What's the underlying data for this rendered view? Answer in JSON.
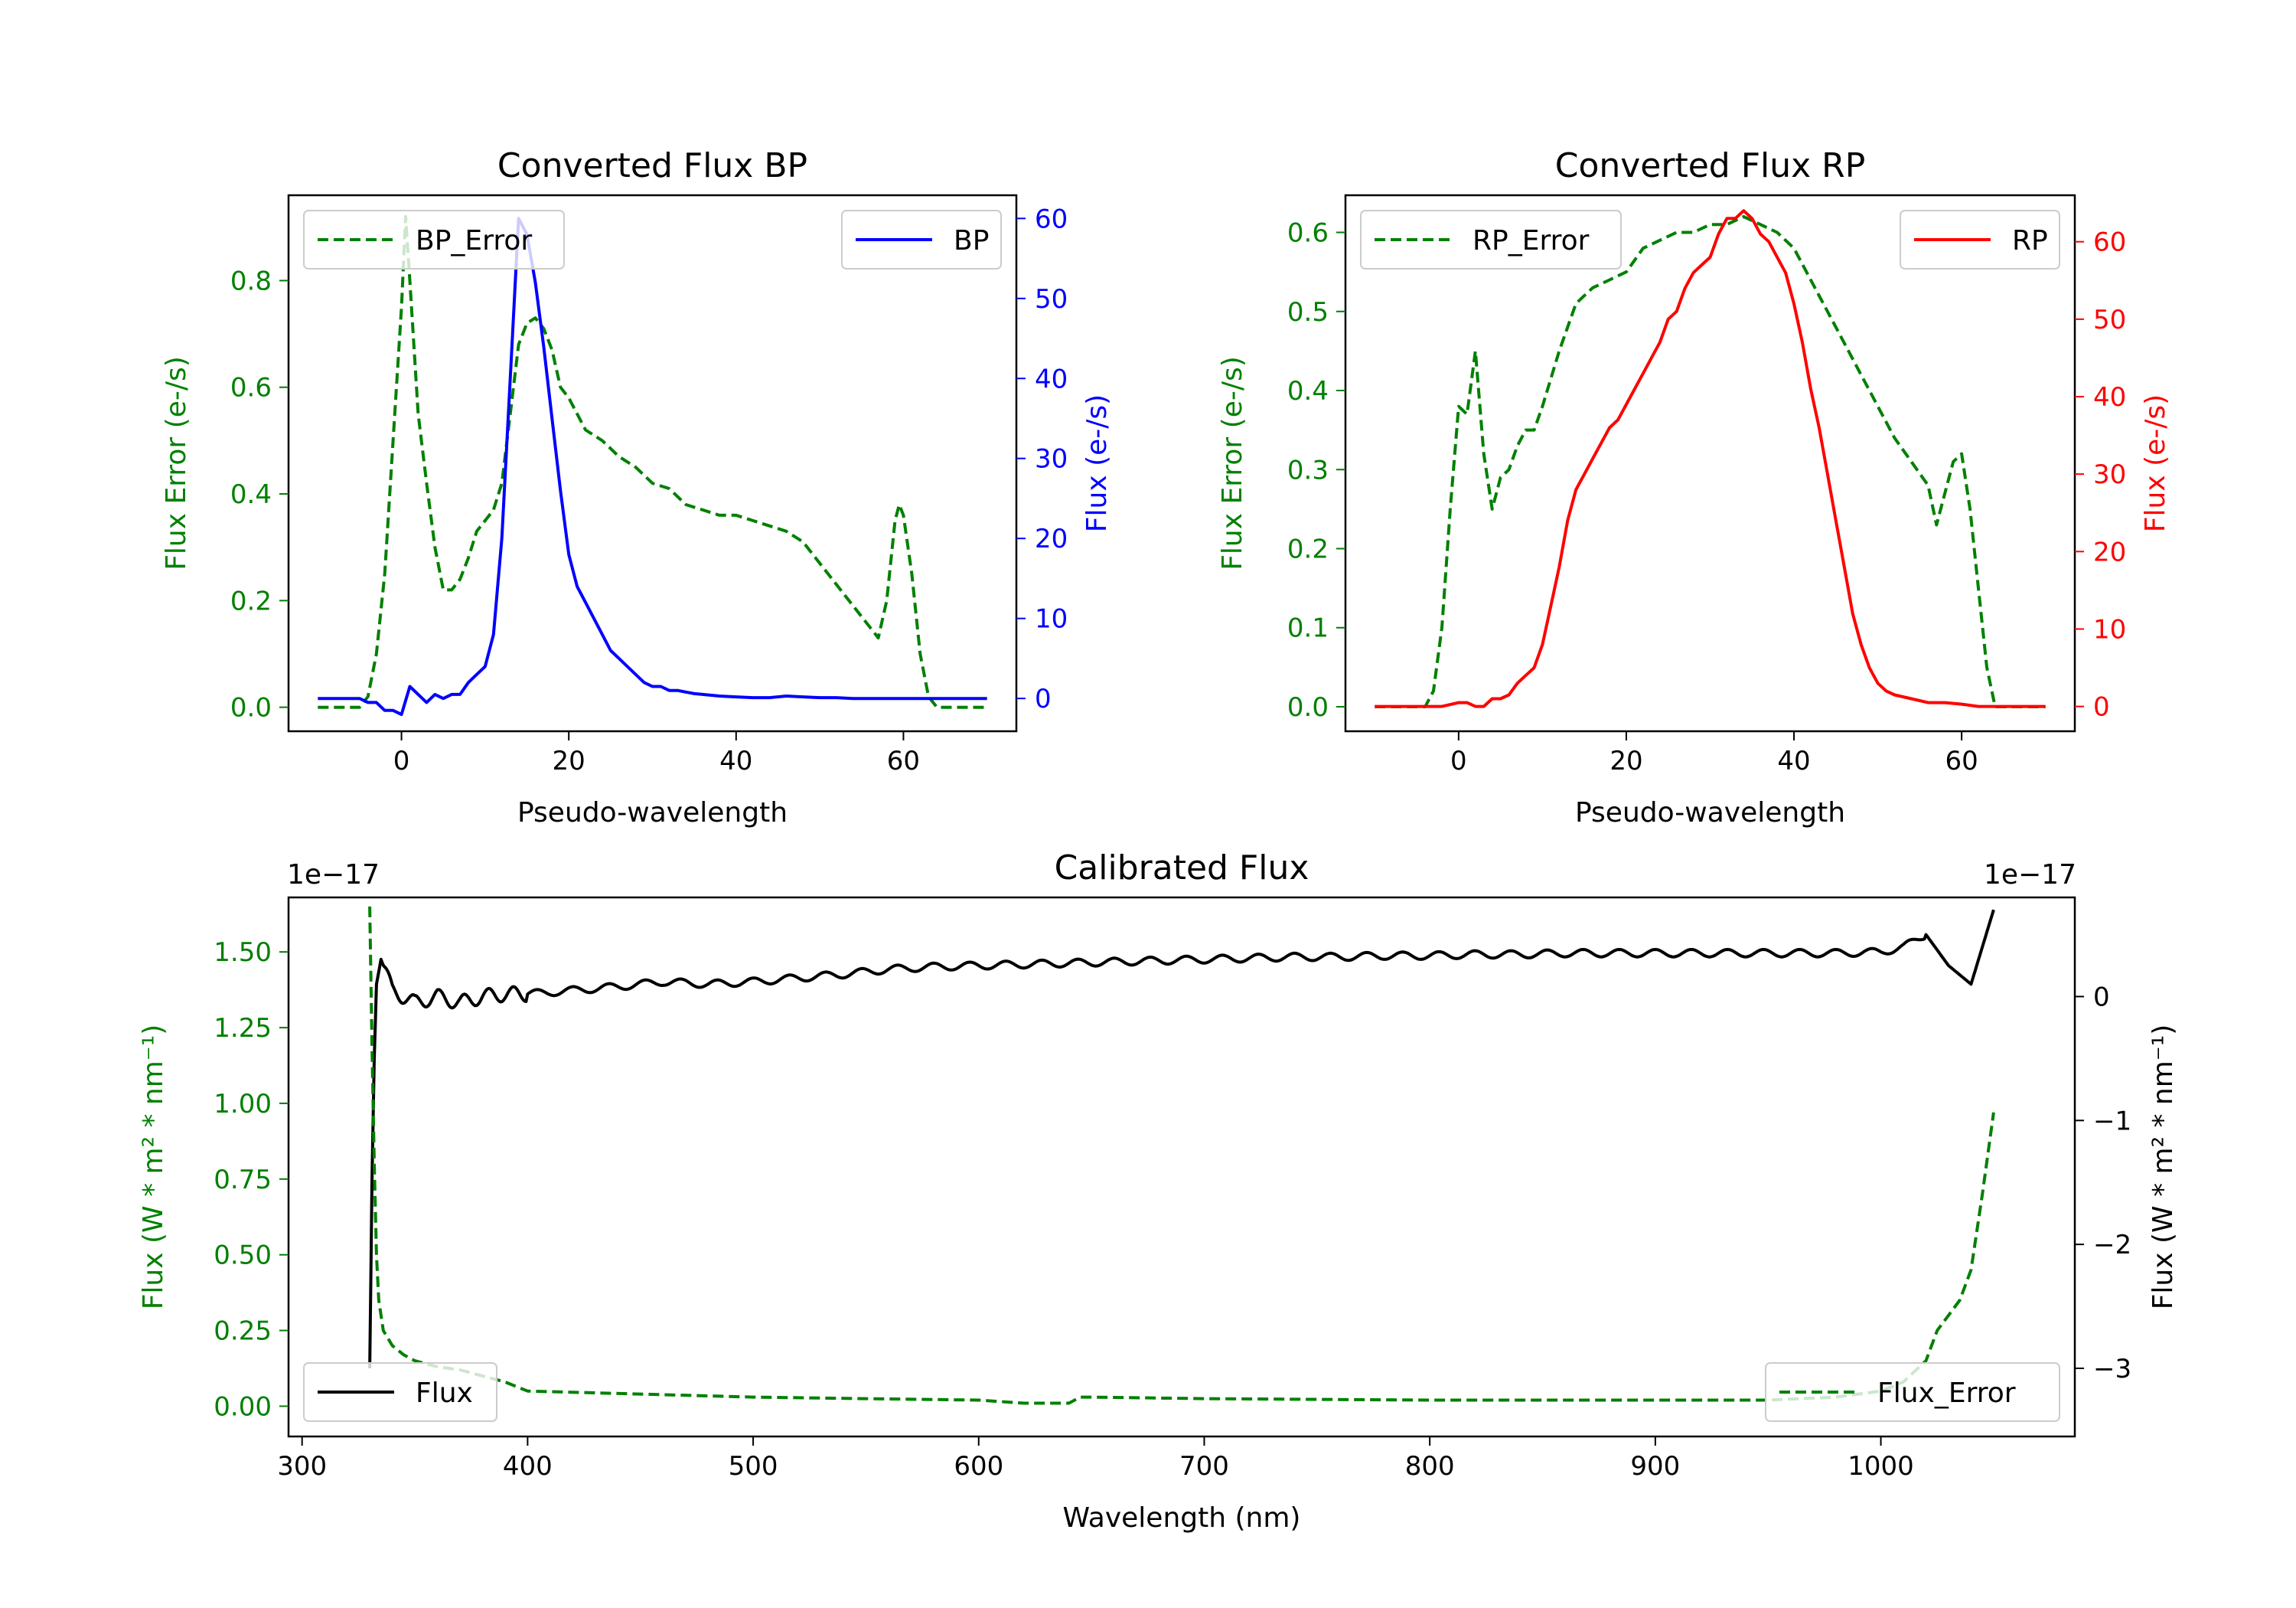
{
  "chart_data": [
    {
      "id": "bp",
      "type": "line",
      "title": "Converted Flux BP",
      "xlabel": "Pseudo-wavelength",
      "ylabel_left": "Flux Error (e-/s)",
      "ylabel_right": "Flux (e-/s)",
      "xlim": [
        -13.5,
        73.5
      ],
      "ylim_left": [
        -0.045,
        0.96
      ],
      "ylim_right": [
        -4.1,
        62.9
      ],
      "xticks": [
        0,
        20,
        40,
        60
      ],
      "yticks_left": [
        0.0,
        0.2,
        0.4,
        0.6,
        0.8
      ],
      "yticks_left_labels": [
        "0.0",
        "0.2",
        "0.4",
        "0.6",
        "0.8"
      ],
      "yticks_right": [
        0,
        10,
        20,
        30,
        40,
        50,
        60
      ],
      "yticks_right_labels": [
        "0",
        "10",
        "20",
        "30",
        "40",
        "50",
        "60"
      ],
      "left_color": "#008000",
      "right_color": "#0000ff",
      "series": [
        {
          "name": "BP_Error",
          "axis": "left",
          "color": "#008000",
          "style": "dashed",
          "x": [
            -10,
            -5,
            -4,
            -3,
            -2,
            -1,
            0,
            0.5,
            1,
            2,
            3,
            4,
            5,
            6,
            7,
            8,
            9,
            10,
            11,
            12,
            13,
            14,
            15,
            16,
            17,
            18,
            19,
            20,
            22,
            24,
            26,
            28,
            30,
            32,
            34,
            36,
            38,
            40,
            42,
            44,
            46,
            48,
            50,
            52,
            54,
            56,
            57,
            58,
            59,
            59.5,
            60,
            61,
            62,
            63,
            64,
            65,
            66,
            70
          ],
          "y": [
            0.0,
            0.0,
            0.02,
            0.1,
            0.25,
            0.5,
            0.75,
            0.92,
            0.8,
            0.55,
            0.42,
            0.3,
            0.22,
            0.22,
            0.24,
            0.28,
            0.33,
            0.35,
            0.37,
            0.42,
            0.55,
            0.68,
            0.72,
            0.73,
            0.71,
            0.67,
            0.6,
            0.58,
            0.52,
            0.5,
            0.47,
            0.45,
            0.42,
            0.41,
            0.38,
            0.37,
            0.36,
            0.36,
            0.35,
            0.34,
            0.33,
            0.31,
            0.27,
            0.23,
            0.19,
            0.15,
            0.13,
            0.2,
            0.35,
            0.38,
            0.36,
            0.25,
            0.1,
            0.02,
            0.0,
            0.0,
            0.0,
            0.0
          ]
        },
        {
          "name": "BP",
          "axis": "right",
          "color": "#0000ff",
          "style": "solid",
          "x": [
            -10,
            -5,
            -4,
            -3,
            -2,
            -1,
            0,
            1,
            2,
            3,
            4,
            5,
            6,
            7,
            8,
            9,
            10,
            11,
            12,
            13,
            14,
            15,
            16,
            17,
            18,
            19,
            20,
            21,
            22,
            23,
            24,
            25,
            26,
            27,
            28,
            29,
            30,
            31,
            32,
            33,
            34,
            35,
            36,
            38,
            40,
            42,
            44,
            46,
            48,
            50,
            52,
            54,
            56,
            58,
            60,
            62,
            64,
            66,
            70
          ],
          "y": [
            0,
            0,
            -0.5,
            -0.5,
            -1.5,
            -1.5,
            -2,
            1.5,
            0.5,
            -0.5,
            0.5,
            0,
            0.5,
            0.5,
            2,
            3,
            4,
            8,
            20,
            40,
            60,
            58,
            52,
            44,
            35,
            26,
            18,
            14,
            12,
            10,
            8,
            6,
            5,
            4,
            3,
            2,
            1.5,
            1.5,
            1,
            1,
            0.8,
            0.6,
            0.5,
            0.3,
            0.2,
            0.1,
            0.1,
            0.3,
            0.2,
            0.1,
            0.1,
            0.0,
            0.0,
            0.0,
            0.0,
            0.0,
            0.0,
            0.0,
            0.0
          ]
        }
      ],
      "legend": [
        {
          "label": "BP_Error",
          "position": "upper-left"
        },
        {
          "label": "BP",
          "position": "upper-right"
        }
      ]
    },
    {
      "id": "rp",
      "type": "line",
      "title": "Converted Flux RP",
      "xlabel": "Pseudo-wavelength",
      "ylabel_left": "Flux Error (e-/s)",
      "ylabel_right": "Flux (e-/s)",
      "xlim": [
        -13.5,
        73.5
      ],
      "ylim_left": [
        -0.031,
        0.647
      ],
      "ylim_right": [
        -3.2,
        66.0
      ],
      "xticks": [
        0,
        20,
        40,
        60
      ],
      "yticks_left": [
        0.0,
        0.1,
        0.2,
        0.3,
        0.4,
        0.5,
        0.6
      ],
      "yticks_left_labels": [
        "0.0",
        "0.1",
        "0.2",
        "0.3",
        "0.4",
        "0.5",
        "0.6"
      ],
      "yticks_right": [
        0,
        10,
        20,
        30,
        40,
        50,
        60
      ],
      "yticks_right_labels": [
        "0",
        "10",
        "20",
        "30",
        "40",
        "50",
        "60"
      ],
      "left_color": "#008000",
      "right_color": "#ff0000",
      "series": [
        {
          "name": "RP_Error",
          "axis": "left",
          "color": "#008000",
          "style": "dashed",
          "x": [
            -10,
            -5,
            -4,
            -3,
            -2,
            -1,
            0,
            1,
            2,
            3,
            4,
            5,
            6,
            7,
            8,
            9,
            10,
            12,
            14,
            16,
            18,
            20,
            22,
            24,
            26,
            28,
            30,
            32,
            34,
            36,
            38,
            40,
            42,
            44,
            46,
            48,
            50,
            52,
            54,
            56,
            57,
            58,
            59,
            60,
            61,
            62,
            63,
            64,
            66,
            70
          ],
          "y": [
            0.0,
            0.0,
            0.0,
            0.02,
            0.1,
            0.25,
            0.38,
            0.37,
            0.45,
            0.32,
            0.25,
            0.29,
            0.3,
            0.33,
            0.35,
            0.35,
            0.38,
            0.45,
            0.51,
            0.53,
            0.54,
            0.55,
            0.58,
            0.59,
            0.6,
            0.6,
            0.61,
            0.61,
            0.62,
            0.61,
            0.6,
            0.58,
            0.54,
            0.5,
            0.46,
            0.42,
            0.38,
            0.34,
            0.31,
            0.28,
            0.23,
            0.27,
            0.31,
            0.32,
            0.25,
            0.15,
            0.05,
            0.0,
            0.0,
            0.0
          ]
        },
        {
          "name": "RP",
          "axis": "right",
          "color": "#ff0000",
          "style": "solid",
          "x": [
            -10,
            -5,
            -2,
            0,
            1,
            2,
            3,
            4,
            5,
            6,
            7,
            8,
            9,
            10,
            11,
            12,
            13,
            14,
            15,
            16,
            17,
            18,
            19,
            20,
            21,
            22,
            23,
            24,
            25,
            26,
            27,
            28,
            29,
            30,
            31,
            32,
            33,
            34,
            35,
            36,
            37,
            38,
            39,
            40,
            41,
            42,
            43,
            44,
            45,
            46,
            47,
            48,
            49,
            50,
            51,
            52,
            54,
            56,
            58,
            60,
            62,
            65,
            70
          ],
          "y": [
            0,
            0,
            0,
            0.5,
            0.5,
            0,
            0,
            1,
            1,
            1.5,
            3,
            4,
            5,
            8,
            13,
            18,
            24,
            28,
            30,
            32,
            34,
            36,
            37,
            39,
            41,
            43,
            45,
            47,
            50,
            51,
            54,
            56,
            57,
            58,
            61,
            63,
            63,
            64,
            63,
            61,
            60,
            58,
            56,
            52,
            47,
            41,
            36,
            30,
            24,
            18,
            12,
            8,
            5,
            3,
            2,
            1.5,
            1,
            0.5,
            0.5,
            0.3,
            0.0,
            0.0,
            0.0
          ]
        }
      ],
      "legend": [
        {
          "label": "RP_Error",
          "position": "upper-left"
        },
        {
          "label": "RP",
          "position": "upper-right"
        }
      ]
    },
    {
      "id": "cal",
      "type": "line",
      "title": "Calibrated Flux",
      "xlabel": "Wavelength (nm)",
      "ylabel_left": "Flux (W * m² * nm⁻¹)",
      "ylabel_right": "Flux (W * m² * nm⁻¹)",
      "offset_left": "1e−17",
      "offset_right": "1e−17",
      "xlim": [
        294,
        1086
      ],
      "ylim_left": [
        -0.1,
        1.68
      ],
      "ylim_right": [
        -3.55,
        0.8
      ],
      "xticks": [
        300,
        400,
        500,
        600,
        700,
        800,
        900,
        1000
      ],
      "yticks_left": [
        0.0,
        0.25,
        0.5,
        0.75,
        1.0,
        1.25,
        1.5
      ],
      "yticks_left_labels": [
        "0.00",
        "0.25",
        "0.50",
        "0.75",
        "1.00",
        "1.25",
        "1.50"
      ],
      "yticks_right": [
        0,
        -1,
        -2,
        -3
      ],
      "yticks_right_labels": [
        "0",
        "−1",
        "−2",
        "−3"
      ],
      "left_color": "#008000",
      "right_color": "#000000",
      "series": [
        {
          "name": "Flux",
          "axis": "right",
          "color": "#000000",
          "style": "solid",
          "oscillation": true,
          "x": [
            330,
            331,
            332,
            333,
            335,
            340,
            350,
            360,
            370,
            380,
            390,
            400,
            420,
            440,
            460,
            480,
            500,
            520,
            540,
            560,
            580,
            600,
            620,
            640,
            660,
            680,
            700,
            720,
            740,
            760,
            780,
            800,
            820,
            840,
            860,
            880,
            900,
            920,
            940,
            960,
            980,
            1000,
            1010,
            1020,
            1030,
            1040,
            1045,
            1050
          ],
          "y": [
            -3.0,
            -1.5,
            -0.5,
            0.1,
            0.3,
            0.05,
            -0.05,
            0.0,
            -0.05,
            0.0,
            0.02,
            0.02,
            0.05,
            0.08,
            0.12,
            0.1,
            0.12,
            0.15,
            0.18,
            0.22,
            0.24,
            0.25,
            0.26,
            0.27,
            0.28,
            0.29,
            0.3,
            0.31,
            0.32,
            0.32,
            0.33,
            0.33,
            0.34,
            0.34,
            0.35,
            0.35,
            0.35,
            0.35,
            0.35,
            0.35,
            0.35,
            0.36,
            0.4,
            0.5,
            0.25,
            0.1,
            0.4,
            0.7
          ]
        },
        {
          "name": "Flux_Error",
          "axis": "left",
          "color": "#008000",
          "style": "dashed",
          "x": [
            330,
            331,
            332,
            333,
            334,
            336,
            340,
            345,
            350,
            360,
            370,
            380,
            390,
            400,
            450,
            500,
            550,
            600,
            620,
            640,
            645,
            650,
            700,
            800,
            900,
            950,
            980,
            1000,
            1010,
            1020,
            1025,
            1030,
            1035,
            1040,
            1045,
            1050
          ],
          "y": [
            1.65,
            1.2,
            0.8,
            0.5,
            0.35,
            0.25,
            0.2,
            0.17,
            0.15,
            0.13,
            0.12,
            0.1,
            0.08,
            0.05,
            0.04,
            0.03,
            0.025,
            0.02,
            0.01,
            0.01,
            0.03,
            0.03,
            0.025,
            0.02,
            0.02,
            0.02,
            0.03,
            0.05,
            0.08,
            0.15,
            0.25,
            0.3,
            0.35,
            0.45,
            0.7,
            0.97
          ]
        }
      ],
      "legend": [
        {
          "label": "Flux",
          "position": "lower-left"
        },
        {
          "label": "Flux_Error",
          "position": "lower-right"
        }
      ]
    }
  ]
}
